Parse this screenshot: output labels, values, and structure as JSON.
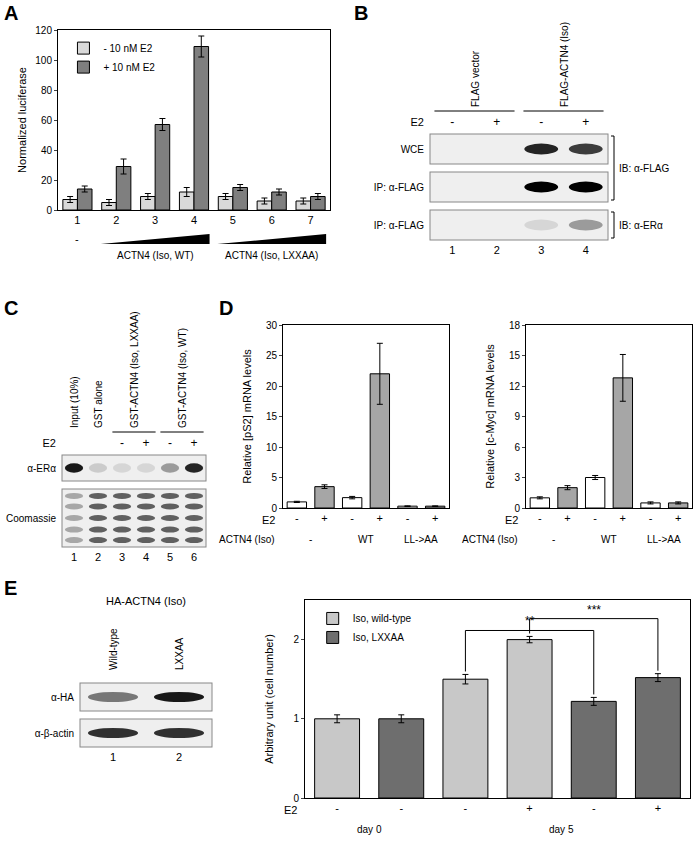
{
  "chart_data": [
    {
      "panel": "A",
      "type": "bar",
      "categories": [
        "1",
        "2",
        "3",
        "4",
        "5",
        "6",
        "7"
      ],
      "ylabel": "Normalized luciferase",
      "ylim": [
        0,
        120
      ],
      "yticks": [
        0,
        20,
        40,
        60,
        80,
        100,
        120
      ],
      "grid": false,
      "legend": "top-left",
      "series": [
        {
          "name": "- 10 nM E2",
          "color": "#d9d9d9",
          "values": [
            7,
            5,
            9,
            12,
            9,
            6,
            6
          ],
          "errors": [
            2,
            2,
            2,
            3,
            2,
            2,
            2
          ]
        },
        {
          "name": "+ 10 nM E2",
          "color": "#7f7f7f",
          "values": [
            14,
            29,
            57,
            109,
            15,
            12,
            9
          ],
          "errors": [
            2,
            5,
            4,
            7,
            2,
            2,
            2
          ]
        }
      ],
      "groups": [
        {
          "text": "-",
          "from": 0,
          "to": 0
        },
        {
          "text": "ACTN4 (Iso, WT)",
          "from": 1,
          "to": 3
        },
        {
          "text": "ACTN4 (Iso, LXXAA)",
          "from": 4,
          "to": 6
        }
      ]
    },
    {
      "panel": "D",
      "type": "bar",
      "categories": [
        "-",
        "+",
        "-",
        "+",
        "-",
        "+"
      ],
      "category_title": "E2",
      "groups_title": "ACTN4 (Iso)",
      "groups": [
        {
          "text": "-",
          "from": 0,
          "to": 1
        },
        {
          "text": "WT",
          "from": 2,
          "to": 3
        },
        {
          "text": "LL->AA",
          "from": 4,
          "to": 5
        }
      ],
      "values": [
        1,
        3.5,
        1.7,
        22,
        0.3,
        0.3
      ],
      "errors": [
        0.1,
        0.3,
        0.2,
        5,
        0.05,
        0.05
      ],
      "colors": [
        "#ffffff",
        "#a6a6a6",
        "#ffffff",
        "#a6a6a6",
        "#ffffff",
        "#a6a6a6"
      ],
      "ylabel": "Relative [pS2] mRNA levels",
      "ylim": [
        0,
        30
      ],
      "yticks": [
        0,
        5,
        10,
        15,
        20,
        25,
        30
      ],
      "grid": false
    },
    {
      "type": "bar",
      "categories": [
        "-",
        "+",
        "-",
        "+",
        "-",
        "+"
      ],
      "category_title": "E2",
      "groups_title": "ACTN4 (Iso)",
      "groups": [
        {
          "text": "-",
          "from": 0,
          "to": 1
        },
        {
          "text": "WT",
          "from": 2,
          "to": 3
        },
        {
          "text": "LL->AA",
          "from": 4,
          "to": 5
        }
      ],
      "values": [
        1,
        2,
        3,
        12.8,
        0.5,
        0.5
      ],
      "errors": [
        0.1,
        0.2,
        0.2,
        2.3,
        0.1,
        0.1
      ],
      "colors": [
        "#ffffff",
        "#a6a6a6",
        "#ffffff",
        "#a6a6a6",
        "#ffffff",
        "#a6a6a6"
      ],
      "ylabel": "Relative [c-Myc] mRNA levels",
      "ylim": [
        0,
        18
      ],
      "yticks": [
        0,
        3,
        6,
        9,
        12,
        15,
        18
      ],
      "grid": false
    },
    {
      "type": "bar",
      "categories": [
        "-",
        "-",
        "-",
        "+",
        "-",
        "+"
      ],
      "category_title": "E2",
      "groups": [
        {
          "text": "day 0",
          "from": 0,
          "to": 1
        },
        {
          "text": "day 5",
          "from": 2,
          "to": 5
        }
      ],
      "ylabel": "Arbitrary unit (cell number)",
      "ylim": [
        0,
        2.5
      ],
      "yticks": [
        0,
        1,
        2
      ],
      "grid": false,
      "legend": "top-left",
      "series": [
        {
          "name": "Iso, wild-type",
          "color": "#c8c8c8",
          "values": [
            1.0,
            null,
            1.5,
            2.0,
            null,
            null
          ],
          "errors": [
            0.05,
            null,
            0.06,
            0.04,
            null,
            null
          ]
        },
        {
          "name": "Iso, LXXAA",
          "color": "#6e6e6e",
          "values": [
            null,
            1.0,
            null,
            null,
            1.22,
            1.52
          ],
          "errors": [
            null,
            0.05,
            null,
            null,
            0.05,
            0.05
          ]
        }
      ],
      "significance": [
        {
          "text": "**",
          "from": 2,
          "to": 4
        },
        {
          "text": "***",
          "from": 3,
          "to": 5
        }
      ]
    }
  ],
  "blots": [
    {
      "panel": "B",
      "lanes": [
        "1",
        "2",
        "3",
        "4"
      ],
      "headers": [
        {
          "text": "FLAG vector",
          "from": 0,
          "to": 1
        },
        {
          "text": "FLAG-ACTN4 (Iso)",
          "from": 2,
          "to": 3
        }
      ],
      "treatment": {
        "label": "E2",
        "marks": [
          "-",
          "+",
          "-",
          "+"
        ]
      },
      "strips": [
        {
          "label": "WCE",
          "bands": [
            0,
            0,
            0.85,
            0.75
          ]
        },
        {
          "label": "IP: α-FLAG",
          "bands": [
            0,
            0,
            1,
            1
          ]
        },
        {
          "label": "IP: α-FLAG",
          "bands": [
            0,
            0,
            0.1,
            0.35
          ]
        }
      ],
      "probes": [
        {
          "text": "IB: α-FLAG",
          "from": 0,
          "to": 1
        },
        {
          "text": "IB: α-ERα",
          "from": 2,
          "to": 2
        }
      ]
    },
    {
      "panel": "C",
      "lanes": [
        "1",
        "2",
        "3",
        "4",
        "5",
        "6"
      ],
      "headers": [
        {
          "text": "Input (10%)",
          "from": 0,
          "to": 0
        },
        {
          "text": "GST alone",
          "from": 1,
          "to": 1
        },
        {
          "text": "GST-ACTN4 (Iso, LXXAA)",
          "from": 2,
          "to": 3
        },
        {
          "text": "GST-ACTN4 (Iso, WT)",
          "from": 4,
          "to": 5
        }
      ],
      "treatment": {
        "label": "E2",
        "marks": [
          null,
          null,
          "-",
          "+",
          "-",
          "+"
        ]
      },
      "strips": [
        {
          "label": "α-ERα",
          "bands": [
            0.9,
            0.15,
            0.1,
            0.1,
            0.35,
            0.85
          ]
        },
        {
          "label": "Coomassie",
          "bands": [
            0.3,
            0.6,
            0.6,
            0.6,
            0.6,
            0.6
          ]
        }
      ]
    },
    {
      "panel": "E",
      "title": "HA-ACTN4 (Iso)",
      "lanes": [
        "1",
        "2"
      ],
      "headers": [
        {
          "text": "Wild-type",
          "from": 0,
          "to": 0
        },
        {
          "text": "LXXAA",
          "from": 1,
          "to": 1
        }
      ],
      "strips": [
        {
          "label": "α-HA",
          "bands": [
            0.5,
            0.9
          ]
        },
        {
          "label": "α-β-actin",
          "bands": [
            0.8,
            0.8
          ]
        }
      ]
    }
  ]
}
